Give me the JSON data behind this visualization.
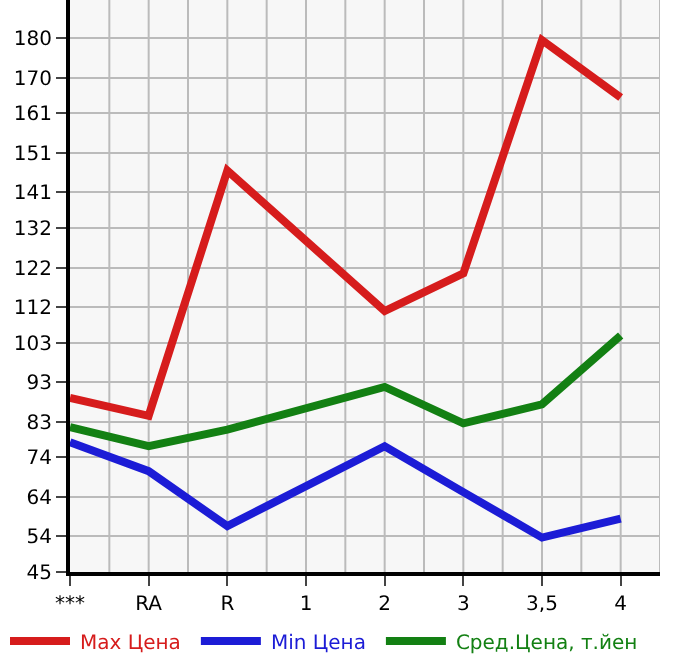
{
  "chart_data": {
    "type": "line",
    "categories": [
      "***",
      "RA",
      "R",
      "1",
      "2",
      "3",
      "3,5",
      "4"
    ],
    "series": [
      {
        "name": "Max Цена",
        "color": "#d61c1c",
        "values": [
          89,
          84.5,
          146.5,
          null,
          111,
          120.5,
          179.5,
          165
        ]
      },
      {
        "name": "Min Цена",
        "color": "#1c1cd6",
        "values": [
          77.8,
          70.5,
          56.6,
          null,
          76.8,
          65.2,
          53.7,
          58.5
        ]
      },
      {
        "name": "Сред.Цена, т.йен",
        "color": "#138013",
        "values": [
          81.6,
          76.8,
          81,
          null,
          91.8,
          82.6,
          87.4,
          104.8
        ]
      }
    ],
    "ylim": [
      45,
      189.64
    ],
    "yticks": [
      45,
      54,
      64,
      74,
      83,
      93,
      103,
      112,
      122,
      132,
      141,
      151,
      161,
      170,
      180
    ],
    "grid": true,
    "legend": "bottom",
    "marker": "none",
    "line_style": "solid"
  }
}
